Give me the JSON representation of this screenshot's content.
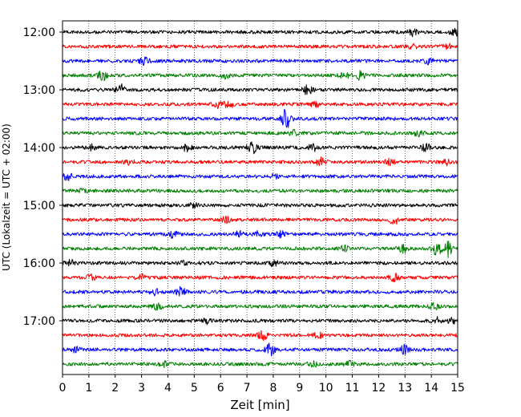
{
  "chart_data": {
    "type": "line",
    "title": "",
    "xlabel": "Zeit  [min]",
    "ylabel": "UTC (Lokalzeit = UTC + 02:00)",
    "xlim": [
      0,
      15
    ],
    "x_ticks": [
      "0",
      "1",
      "2",
      "3",
      "4",
      "5",
      "6",
      "7",
      "8",
      "9",
      "10",
      "11",
      "12",
      "13",
      "14",
      "15"
    ],
    "y_ticks": [
      "12:00",
      "13:00",
      "14:00",
      "15:00",
      "16:00",
      "17:00"
    ],
    "grid": "vertical dotted",
    "legend": "none",
    "trace_interval_min": 15,
    "start_time": "12:00",
    "colors": [
      "#000000",
      "#ff0000",
      "#0000ff",
      "#008000"
    ],
    "series": [
      {
        "start": "12:00",
        "color": "#000000",
        "events": [
          {
            "t": 13.3,
            "a": 4
          },
          {
            "t": 14.9,
            "a": 4
          }
        ]
      },
      {
        "start": "12:15",
        "color": "#ff0000",
        "events": [
          {
            "t": 13.3,
            "a": 3
          },
          {
            "t": 14.6,
            "a": 3
          }
        ]
      },
      {
        "start": "12:30",
        "color": "#0000ff",
        "events": [
          {
            "t": 3.1,
            "a": 5
          },
          {
            "t": 13.9,
            "a": 3
          }
        ]
      },
      {
        "start": "12:45",
        "color": "#008000",
        "events": [
          {
            "t": 1.5,
            "a": 6
          },
          {
            "t": 6.2,
            "a": 3
          },
          {
            "t": 10.7,
            "a": 4
          },
          {
            "t": 11.3,
            "a": 5
          }
        ]
      },
      {
        "start": "13:00",
        "color": "#000000",
        "events": [
          {
            "t": 2.2,
            "a": 6
          },
          {
            "t": 9.3,
            "a": 6
          }
        ]
      },
      {
        "start": "13:15",
        "color": "#ff0000",
        "events": [
          {
            "t": 5.9,
            "a": 4
          },
          {
            "t": 6.3,
            "a": 5
          },
          {
            "t": 9.6,
            "a": 3
          }
        ]
      },
      {
        "start": "13:30",
        "color": "#0000ff",
        "events": [
          {
            "t": 8.5,
            "a": 14
          }
        ]
      },
      {
        "start": "13:45",
        "color": "#008000",
        "events": [
          {
            "t": 8.8,
            "a": 3
          },
          {
            "t": 13.5,
            "a": 3
          }
        ]
      },
      {
        "start": "14:00",
        "color": "#000000",
        "events": [
          {
            "t": 1.1,
            "a": 3
          },
          {
            "t": 4.7,
            "a": 4
          },
          {
            "t": 7.2,
            "a": 7
          },
          {
            "t": 9.5,
            "a": 4
          },
          {
            "t": 13.8,
            "a": 4
          }
        ]
      },
      {
        "start": "14:15",
        "color": "#ff0000",
        "events": [
          {
            "t": 2.5,
            "a": 3
          },
          {
            "t": 9.8,
            "a": 5
          },
          {
            "t": 12.4,
            "a": 5
          },
          {
            "t": 14.5,
            "a": 5
          }
        ]
      },
      {
        "start": "14:30",
        "color": "#0000ff",
        "events": [
          {
            "t": 0.2,
            "a": 4
          },
          {
            "t": 8.1,
            "a": 3
          }
        ]
      },
      {
        "start": "14:45",
        "color": "#008000",
        "events": [
          {
            "t": 0.8,
            "a": 3
          }
        ]
      },
      {
        "start": "15:00",
        "color": "#000000",
        "events": [
          {
            "t": 5.0,
            "a": 3
          }
        ]
      },
      {
        "start": "15:15",
        "color": "#ff0000",
        "events": [
          {
            "t": 6.2,
            "a": 3
          },
          {
            "t": 12.6,
            "a": 6
          }
        ]
      },
      {
        "start": "15:30",
        "color": "#0000ff",
        "events": [
          {
            "t": 4.2,
            "a": 5
          },
          {
            "t": 6.7,
            "a": 3
          },
          {
            "t": 7.4,
            "a": 3
          },
          {
            "t": 8.3,
            "a": 3
          }
        ]
      },
      {
        "start": "15:45",
        "color": "#008000",
        "events": [
          {
            "t": 10.7,
            "a": 3
          },
          {
            "t": 12.9,
            "a": 6
          },
          {
            "t": 14.2,
            "a": 8
          },
          {
            "t": 14.6,
            "a": 10
          }
        ]
      },
      {
        "start": "16:00",
        "color": "#000000",
        "events": [
          {
            "t": 0.3,
            "a": 3
          },
          {
            "t": 4.6,
            "a": 3
          },
          {
            "t": 8.0,
            "a": 3
          }
        ]
      },
      {
        "start": "16:15",
        "color": "#ff0000",
        "events": [
          {
            "t": 1.1,
            "a": 3
          },
          {
            "t": 3.0,
            "a": 3
          },
          {
            "t": 12.6,
            "a": 4
          }
        ]
      },
      {
        "start": "16:30",
        "color": "#0000ff",
        "events": [
          {
            "t": 3.5,
            "a": 3
          },
          {
            "t": 4.5,
            "a": 5
          }
        ]
      },
      {
        "start": "16:45",
        "color": "#008000",
        "events": [
          {
            "t": 3.6,
            "a": 4
          },
          {
            "t": 14.1,
            "a": 3
          }
        ]
      },
      {
        "start": "17:00",
        "color": "#000000",
        "events": [
          {
            "t": 5.5,
            "a": 3
          },
          {
            "t": 14.2,
            "a": 4
          },
          {
            "t": 14.8,
            "a": 3
          }
        ]
      },
      {
        "start": "17:15",
        "color": "#ff0000",
        "events": [
          {
            "t": 7.6,
            "a": 5
          },
          {
            "t": 9.7,
            "a": 3
          }
        ]
      },
      {
        "start": "17:30",
        "color": "#0000ff",
        "events": [
          {
            "t": 0.5,
            "a": 3
          },
          {
            "t": 7.9,
            "a": 8
          },
          {
            "t": 13.0,
            "a": 6
          }
        ]
      },
      {
        "start": "17:45",
        "color": "#008000",
        "events": [
          {
            "t": 3.9,
            "a": 3
          },
          {
            "t": 9.5,
            "a": 3
          },
          {
            "t": 10.9,
            "a": 3
          }
        ]
      }
    ]
  }
}
